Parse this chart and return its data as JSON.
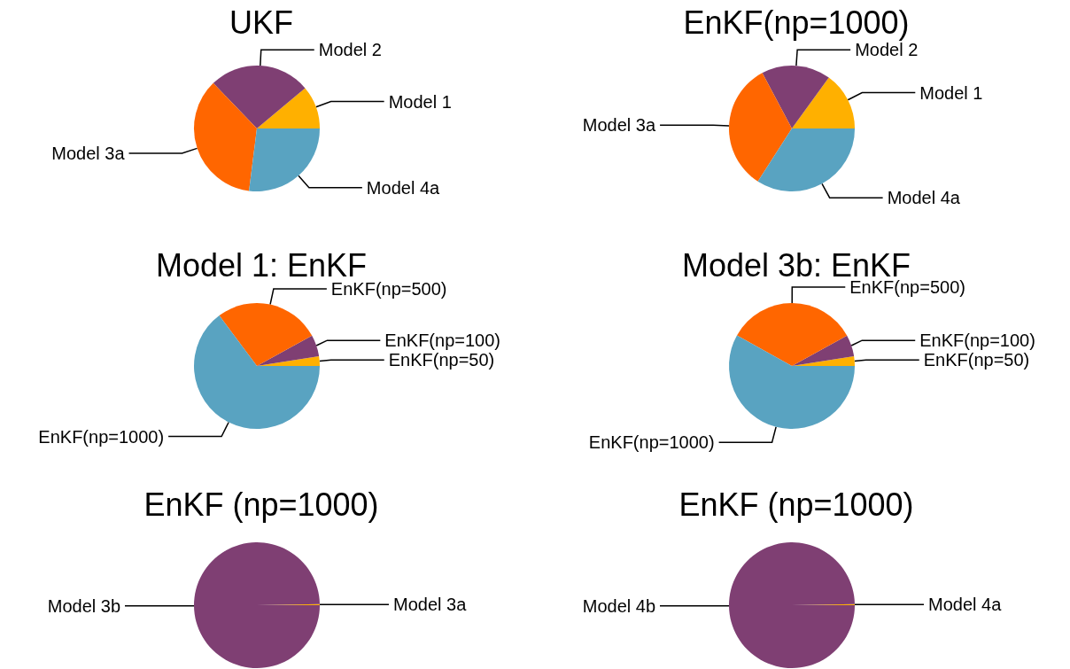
{
  "chart_data": [
    {
      "type": "pie",
      "title": "UKF",
      "categories": [
        "Model 1",
        "Model 2",
        "Model 3a",
        "Model 4a"
      ],
      "values": [
        11.1,
        26.1,
        35.8,
        27.0
      ],
      "colors": [
        "#ffb000",
        "#7f3f73",
        "#ff6600",
        "#59a3c1"
      ]
    },
    {
      "type": "pie",
      "title": "EnKF(np=1000)",
      "categories": [
        "Model 1",
        "Model 2",
        "Model 3a",
        "Model 4a"
      ],
      "values": [
        15.0,
        17.8,
        33.1,
        34.1
      ],
      "colors": [
        "#ffb000",
        "#7f3f73",
        "#ff6600",
        "#59a3c1"
      ]
    },
    {
      "type": "pie",
      "title": "Model 1: EnKF",
      "categories": [
        "EnKF(np=50)",
        "EnKF(np=100)",
        "EnKF(np=500)",
        "EnKF(np=1000)"
      ],
      "values": [
        2.5,
        5.5,
        27.2,
        64.8
      ],
      "colors": [
        "#ffb000",
        "#7f3f73",
        "#ff6600",
        "#59a3c1"
      ]
    },
    {
      "type": "pie",
      "title": "Model 3b: EnKF",
      "categories": [
        "EnKF(np=50)",
        "EnKF(np=100)",
        "EnKF(np=500)",
        "EnKF(np=1000)"
      ],
      "values": [
        2.5,
        5.5,
        33.9,
        58.1
      ],
      "colors": [
        "#ffb000",
        "#7f3f73",
        "#ff6600",
        "#59a3c1"
      ]
    },
    {
      "type": "pie",
      "title": "EnKF (np=1000)",
      "categories": [
        "Model 3a",
        "Model 3b"
      ],
      "values": [
        0.3,
        99.7
      ],
      "colors": [
        "#ffb000",
        "#7f3f73"
      ]
    },
    {
      "type": "pie",
      "title": "EnKF (np=1000)",
      "categories": [
        "Model 4a",
        "Model 4b"
      ],
      "values": [
        0.3,
        99.7
      ],
      "colors": [
        "#ffb000",
        "#7f3f73"
      ]
    }
  ]
}
